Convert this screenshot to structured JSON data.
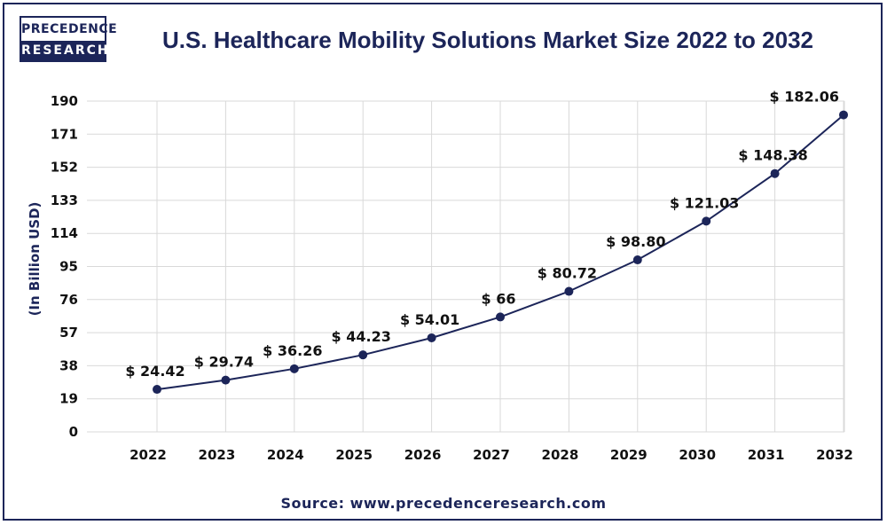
{
  "logo": {
    "top_text": "PRECEDENCE",
    "bottom_text": "RESEARCH"
  },
  "chart_data": {
    "type": "line",
    "title": "U.S. Healthcare Mobility Solutions Market Size 2022 to 2032",
    "ylabel": "(In Billion USD)",
    "xlabel": "",
    "categories": [
      "2022",
      "2023",
      "2024",
      "2025",
      "2026",
      "2027",
      "2028",
      "2029",
      "2030",
      "2031",
      "2032"
    ],
    "values": [
      24.42,
      29.74,
      36.26,
      44.23,
      54.01,
      66,
      80.72,
      98.8,
      121.03,
      148.38,
      182.06
    ],
    "data_labels": [
      "$ 24.42",
      "$ 29.74",
      "$ 36.26",
      "$ 44.23",
      "$ 54.01",
      "$ 66",
      "$ 80.72",
      "$ 98.80",
      "$ 121.03",
      "$ 148.38",
      "$ 182.06"
    ],
    "yticks": [
      0,
      19,
      38,
      57,
      76,
      95,
      114,
      133,
      152,
      171,
      190
    ],
    "ylim": [
      0,
      190
    ],
    "grid": true,
    "colors": {
      "line": "#1c2559",
      "marker": "#1c2559",
      "grid": "#d9d9d9",
      "text": "#1c2559"
    }
  },
  "source": "Source: www.precedenceresearch.com"
}
